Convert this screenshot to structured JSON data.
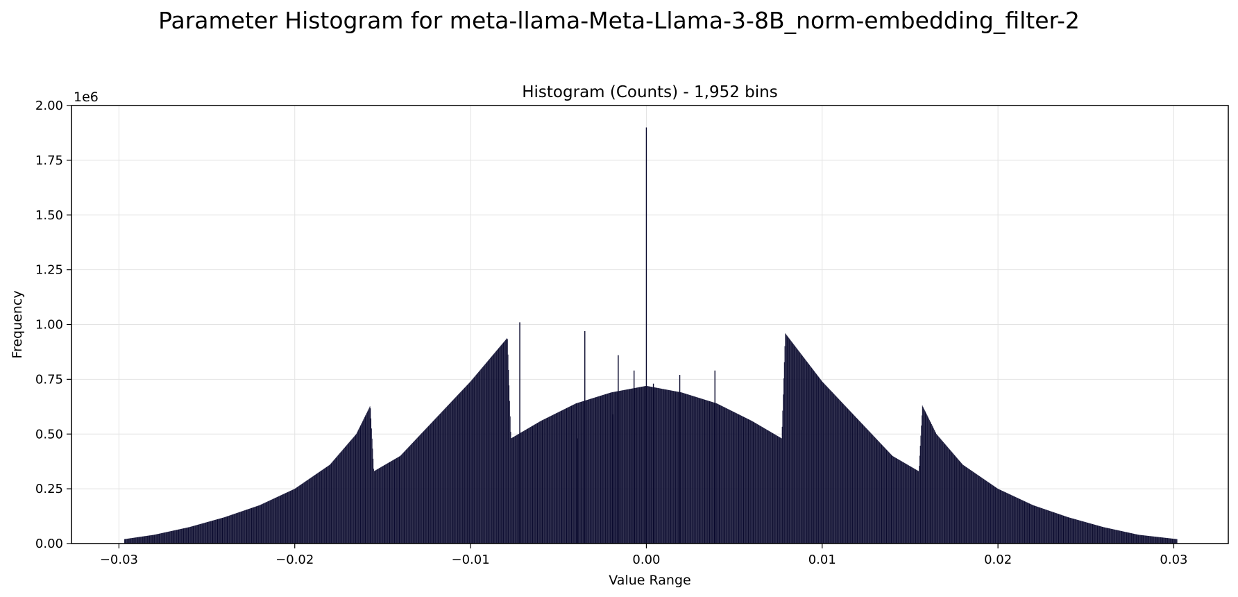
{
  "figure": {
    "suptitle": "Parameter Histogram for meta-llama-Meta-Llama-3-8B_norm-embedding_filter-2"
  },
  "chart_data": {
    "type": "bar",
    "title": "Histogram (Counts) - 1,952 bins",
    "xlabel": "Value Range",
    "ylabel": "Frequency",
    "y_offset_text": "1e6",
    "xlim": [
      -0.0327,
      0.0331
    ],
    "ylim": [
      0,
      2000000
    ],
    "xticks": [
      -0.03,
      -0.02,
      -0.01,
      0.0,
      0.01,
      0.02,
      0.03
    ],
    "xtick_labels": [
      "−0.03",
      "−0.02",
      "−0.01",
      "0.00",
      "0.01",
      "0.02",
      "0.03"
    ],
    "yticks": [
      0,
      250000,
      500000,
      750000,
      1000000,
      1250000,
      1500000,
      1750000,
      2000000
    ],
    "ytick_labels": [
      "0.00",
      "0.25",
      "0.50",
      "0.75",
      "1.00",
      "1.25",
      "1.50",
      "1.75",
      "2.00"
    ],
    "grid": true,
    "bar_color": "#0a0a2e",
    "bins": 1952,
    "range": [
      -0.0297,
      0.0302
    ],
    "profile": [
      {
        "x": -0.0297,
        "y": 20000
      },
      {
        "x": -0.028,
        "y": 40000
      },
      {
        "x": -0.026,
        "y": 75000
      },
      {
        "x": -0.024,
        "y": 120000
      },
      {
        "x": -0.022,
        "y": 175000
      },
      {
        "x": -0.02,
        "y": 250000
      },
      {
        "x": -0.018,
        "y": 360000
      },
      {
        "x": -0.0165,
        "y": 500000
      },
      {
        "x": -0.0157,
        "y": 630000
      },
      {
        "x": -0.0155,
        "y": 330000
      },
      {
        "x": -0.014,
        "y": 400000
      },
      {
        "x": -0.012,
        "y": 570000
      },
      {
        "x": -0.01,
        "y": 740000
      },
      {
        "x": -0.0079,
        "y": 940000
      },
      {
        "x": -0.0077,
        "y": 480000
      },
      {
        "x": -0.006,
        "y": 560000
      },
      {
        "x": -0.004,
        "y": 640000
      },
      {
        "x": -0.002,
        "y": 690000
      },
      {
        "x": 0.0,
        "y": 720000
      },
      {
        "x": 0.002,
        "y": 690000
      },
      {
        "x": 0.004,
        "y": 640000
      },
      {
        "x": 0.006,
        "y": 560000
      },
      {
        "x": 0.0077,
        "y": 480000
      },
      {
        "x": 0.0079,
        "y": 960000
      },
      {
        "x": 0.01,
        "y": 740000
      },
      {
        "x": 0.012,
        "y": 570000
      },
      {
        "x": 0.014,
        "y": 400000
      },
      {
        "x": 0.0155,
        "y": 330000
      },
      {
        "x": 0.0157,
        "y": 630000
      },
      {
        "x": 0.0165,
        "y": 500000
      },
      {
        "x": 0.018,
        "y": 360000
      },
      {
        "x": 0.02,
        "y": 250000
      },
      {
        "x": 0.022,
        "y": 175000
      },
      {
        "x": 0.024,
        "y": 120000
      },
      {
        "x": 0.026,
        "y": 75000
      },
      {
        "x": 0.028,
        "y": 40000
      },
      {
        "x": 0.0302,
        "y": 20000
      }
    ],
    "spikes": [
      {
        "x": 0.0,
        "y": 1900000
      },
      {
        "x": -0.0072,
        "y": 1010000
      },
      {
        "x": -0.0035,
        "y": 970000
      },
      {
        "x": -0.0016,
        "y": 860000
      },
      {
        "x": -0.0007,
        "y": 790000
      },
      {
        "x": 0.0004,
        "y": 730000
      },
      {
        "x": 0.0019,
        "y": 770000
      },
      {
        "x": 0.0039,
        "y": 790000
      },
      {
        "x": -0.0039,
        "y": 480000
      },
      {
        "x": -0.0019,
        "y": 590000
      }
    ]
  }
}
